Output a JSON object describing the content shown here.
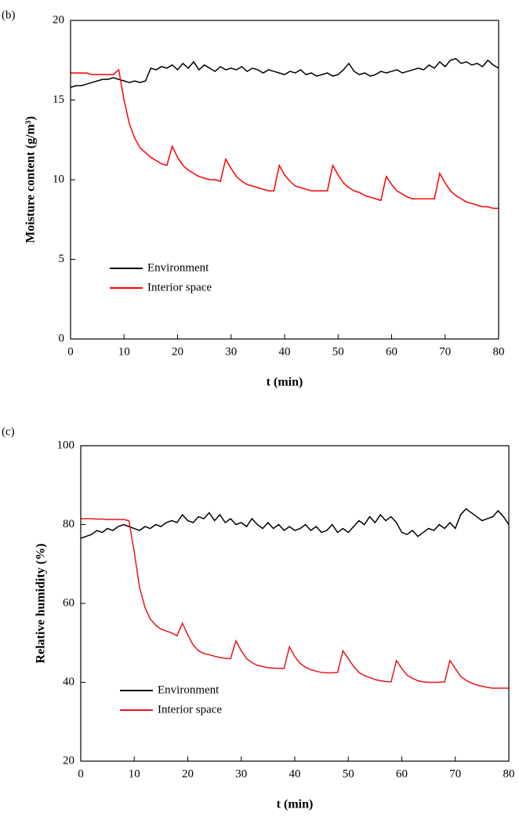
{
  "chart_data": [
    {
      "type": "line",
      "label": "(b)",
      "xlabel": "t (min)",
      "ylabel": "Moisture content (g/m³)",
      "x": [
        0,
        1,
        2,
        3,
        4,
        5,
        6,
        7,
        8,
        9,
        10,
        11,
        12,
        13,
        14,
        15,
        16,
        17,
        18,
        19,
        20,
        21,
        22,
        23,
        24,
        25,
        26,
        27,
        28,
        29,
        30,
        31,
        32,
        33,
        34,
        35,
        36,
        37,
        38,
        39,
        40,
        41,
        42,
        43,
        44,
        45,
        46,
        47,
        48,
        49,
        50,
        51,
        52,
        53,
        54,
        55,
        56,
        57,
        58,
        59,
        60,
        61,
        62,
        63,
        64,
        65,
        66,
        67,
        68,
        69,
        70,
        71,
        72,
        73,
        74,
        75,
        76,
        77,
        78,
        79,
        80
      ],
      "series": [
        {
          "name": "Environment",
          "color": "#000000",
          "values": [
            15.8,
            15.9,
            15.9,
            16.0,
            16.1,
            16.2,
            16.3,
            16.3,
            16.4,
            16.3,
            16.2,
            16.1,
            16.2,
            16.1,
            16.2,
            17.0,
            16.9,
            17.1,
            17.0,
            17.2,
            16.9,
            17.3,
            17.0,
            17.4,
            16.9,
            17.2,
            17.0,
            16.8,
            17.1,
            16.9,
            17.0,
            16.9,
            17.1,
            16.8,
            17.0,
            16.9,
            16.7,
            16.9,
            16.8,
            16.7,
            16.6,
            16.8,
            16.7,
            16.9,
            16.6,
            16.7,
            16.5,
            16.6,
            16.7,
            16.5,
            16.6,
            16.9,
            17.3,
            16.8,
            16.6,
            16.7,
            16.5,
            16.6,
            16.8,
            16.7,
            16.8,
            16.9,
            16.7,
            16.8,
            16.9,
            17.0,
            16.9,
            17.2,
            17.0,
            17.4,
            17.1,
            17.5,
            17.6,
            17.3,
            17.4,
            17.2,
            17.3,
            17.1,
            17.5,
            17.2,
            17.0
          ]
        },
        {
          "name": "Interior space",
          "color": "#ff0000",
          "values": [
            16.7,
            16.7,
            16.7,
            16.7,
            16.6,
            16.6,
            16.6,
            16.6,
            16.6,
            16.9,
            15.0,
            13.5,
            12.6,
            12.0,
            11.7,
            11.4,
            11.2,
            11.0,
            10.9,
            12.1,
            11.4,
            10.9,
            10.6,
            10.4,
            10.2,
            10.1,
            10.0,
            10.0,
            9.9,
            11.3,
            10.7,
            10.2,
            9.9,
            9.7,
            9.6,
            9.5,
            9.4,
            9.3,
            9.3,
            10.9,
            10.3,
            9.9,
            9.6,
            9.5,
            9.4,
            9.3,
            9.3,
            9.3,
            9.3,
            10.9,
            10.3,
            9.8,
            9.5,
            9.3,
            9.2,
            9.0,
            8.9,
            8.8,
            8.7,
            10.2,
            9.7,
            9.3,
            9.1,
            8.9,
            8.8,
            8.8,
            8.8,
            8.8,
            8.8,
            10.4,
            9.8,
            9.3,
            9.0,
            8.8,
            8.6,
            8.5,
            8.4,
            8.3,
            8.3,
            8.2,
            8.2
          ]
        }
      ],
      "xlim": [
        0,
        80
      ],
      "xticks": [
        0,
        10,
        20,
        30,
        40,
        50,
        60,
        70,
        80
      ],
      "ylim": [
        0,
        20
      ],
      "yticks": [
        0,
        5,
        10,
        15,
        20
      ],
      "legend": "lower left",
      "grid": false
    },
    {
      "type": "line",
      "label": "(c)",
      "xlabel": "t (min)",
      "ylabel": "Relative humidity (%)",
      "x": [
        0,
        1,
        2,
        3,
        4,
        5,
        6,
        7,
        8,
        9,
        10,
        11,
        12,
        13,
        14,
        15,
        16,
        17,
        18,
        19,
        20,
        21,
        22,
        23,
        24,
        25,
        26,
        27,
        28,
        29,
        30,
        31,
        32,
        33,
        34,
        35,
        36,
        37,
        38,
        39,
        40,
        41,
        42,
        43,
        44,
        45,
        46,
        47,
        48,
        49,
        50,
        51,
        52,
        53,
        54,
        55,
        56,
        57,
        58,
        59,
        60,
        61,
        62,
        63,
        64,
        65,
        66,
        67,
        68,
        69,
        70,
        71,
        72,
        73,
        74,
        75,
        76,
        77,
        78,
        79,
        80
      ],
      "series": [
        {
          "name": "Environment",
          "color": "#000000",
          "values": [
            76.5,
            77.0,
            77.5,
            78.5,
            78.0,
            79.0,
            78.5,
            79.5,
            80.0,
            79.5,
            79.0,
            78.5,
            79.5,
            79.0,
            80.0,
            79.5,
            80.5,
            81.0,
            80.5,
            82.5,
            81.0,
            80.5,
            82.0,
            81.5,
            83.0,
            81.0,
            82.5,
            80.5,
            81.5,
            80.0,
            80.5,
            79.5,
            81.5,
            80.0,
            79.0,
            80.5,
            79.0,
            80.0,
            78.5,
            79.5,
            78.5,
            79.0,
            80.0,
            78.5,
            79.5,
            78.0,
            78.5,
            80.0,
            78.0,
            79.0,
            78.0,
            79.5,
            81.0,
            80.0,
            82.0,
            80.5,
            82.5,
            81.0,
            82.0,
            80.5,
            78.0,
            77.5,
            78.5,
            77.0,
            78.0,
            79.0,
            78.5,
            80.0,
            79.0,
            80.5,
            79.0,
            82.5,
            84.0,
            83.0,
            82.0,
            81.0,
            81.5,
            82.0,
            83.5,
            82.0,
            80.0
          ]
        },
        {
          "name": "Interior space",
          "color": "#e8141c",
          "values": [
            81.5,
            81.5,
            81.5,
            81.4,
            81.4,
            81.3,
            81.3,
            81.3,
            81.3,
            81.0,
            73,
            64,
            59,
            56,
            54.5,
            53.5,
            53,
            52.5,
            51.8,
            55,
            52,
            49.5,
            48,
            47.3,
            47,
            46.6,
            46.3,
            46.1,
            46,
            50.5,
            48,
            46,
            45,
            44.3,
            44,
            43.7,
            43.6,
            43.5,
            43.5,
            49,
            46.5,
            44.8,
            43.8,
            43.2,
            42.8,
            42.5,
            42.4,
            42.4,
            42.5,
            48,
            46,
            44,
            42.5,
            41.7,
            41.2,
            40.7,
            40.4,
            40.2,
            40.1,
            45.5,
            43.5,
            41.8,
            41,
            40.4,
            40.1,
            40,
            40,
            40,
            40.1,
            45.5,
            43.5,
            41.5,
            40.5,
            39.8,
            39.3,
            39,
            38.7,
            38.5,
            38.5,
            38.5,
            38.5
          ]
        }
      ],
      "xlim": [
        0,
        80
      ],
      "xticks": [
        0,
        10,
        20,
        30,
        40,
        50,
        60,
        70,
        80
      ],
      "ylim": [
        20,
        100
      ],
      "yticks": [
        20,
        40,
        60,
        80,
        100
      ],
      "legend": "lower left",
      "grid": false
    }
  ]
}
